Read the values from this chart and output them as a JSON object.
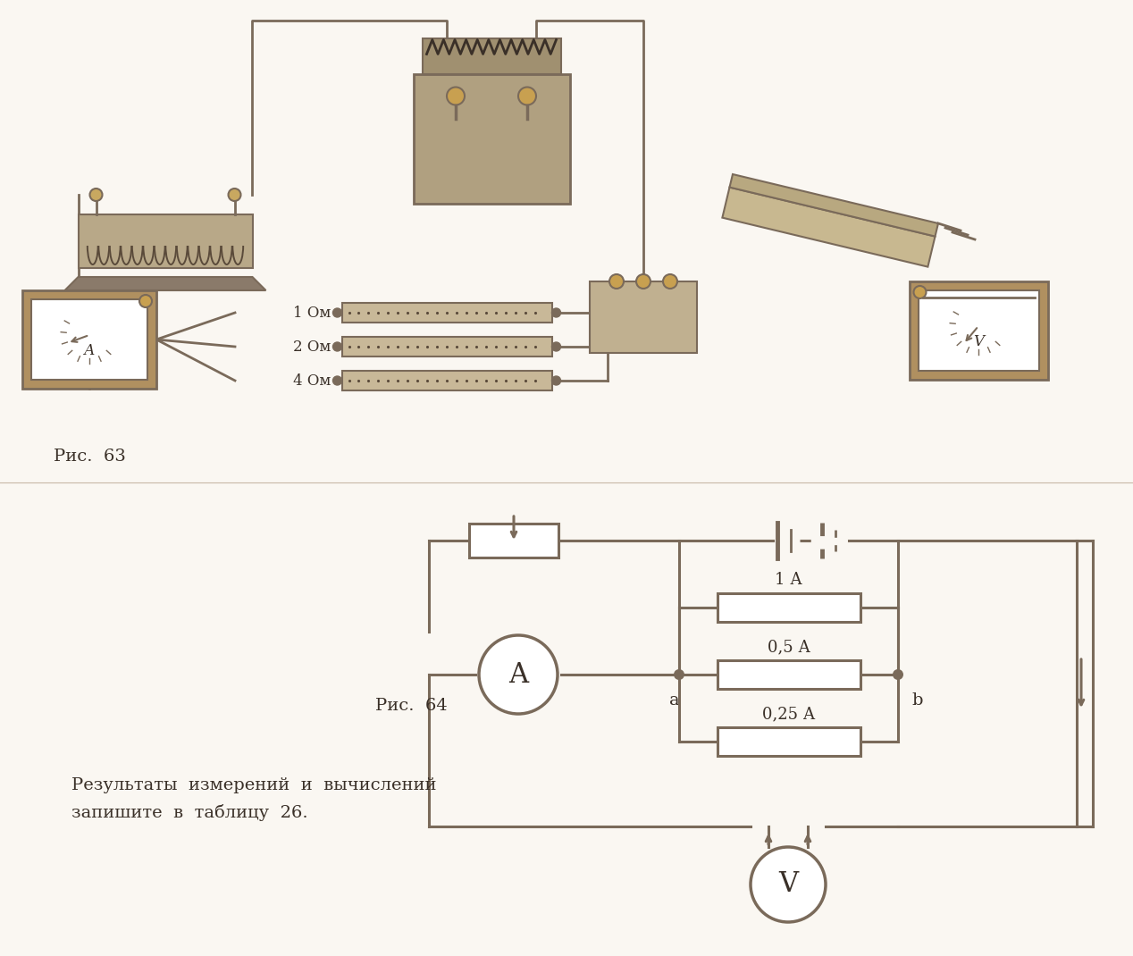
{
  "bg_color": "#faf7f2",
  "line_color": "#7a6a5a",
  "text_color": "#3a3028",
  "fig63_label": "Рис.  63",
  "fig64_label": "Рис.  64",
  "res_labels": [
    "1 Ом",
    "2 Ом",
    "4 Ом"
  ],
  "current_labels": [
    "1 А",
    "0,5 А",
    "0,25 А"
  ],
  "bottom_text": "    Результаты  измерений  и  вычислений\n    запишите  в  таблицу  26.",
  "node_a": "a",
  "node_b": "b",
  "ammeter_label": "A",
  "voltmeter_label": "V",
  "top_bg": "#faf7f2",
  "bot_bg": "#faf7f2"
}
